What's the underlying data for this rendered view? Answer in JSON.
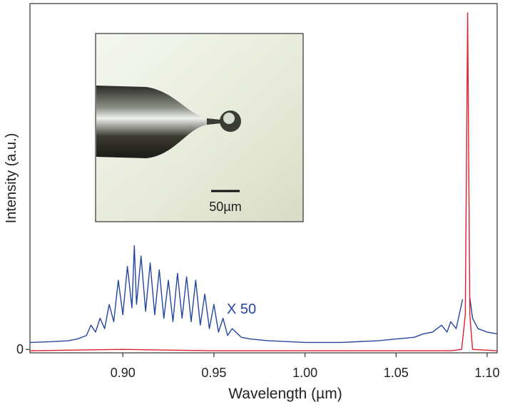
{
  "chart_data": {
    "type": "line",
    "x_label": "Wavelength (µm)",
    "y_label": "Intensity (a.u.)",
    "annotation": "X 50",
    "inset_scale_label": "50µm",
    "xlim": [
      0.849,
      1.1055
    ],
    "ylim": [
      -0.01,
      1
    ],
    "xticks": [
      {
        "value": 0.9,
        "label": "0.90"
      },
      {
        "value": 0.95,
        "label": "0.95"
      },
      {
        "value": 1.0,
        "label": "1.00"
      },
      {
        "value": 1.05,
        "label": "1.05"
      },
      {
        "value": 1.1,
        "label": "1.10"
      }
    ],
    "yticks": [
      0
    ],
    "series": [
      {
        "color": "#2546a0",
        "x": [
          0.849,
          0.86,
          0.87,
          0.875,
          0.88,
          0.8825,
          0.885,
          0.8875,
          0.89,
          0.8925,
          0.895,
          0.8975,
          0.9,
          0.9025,
          0.905,
          0.9063,
          0.9075,
          0.91,
          0.9125,
          0.915,
          0.9175,
          0.92,
          0.9225,
          0.925,
          0.9275,
          0.93,
          0.9325,
          0.935,
          0.9375,
          0.94,
          0.9425,
          0.945,
          0.9475,
          0.95,
          0.9525,
          0.955,
          0.9575,
          0.96,
          0.965,
          0.97,
          0.98,
          1.0,
          1.02,
          1.04,
          1.05,
          1.06,
          1.065,
          1.07,
          1.075,
          1.078,
          1.08,
          1.083,
          1.0855,
          1.0865,
          1.088,
          1.0905,
          1.092,
          1.095,
          1.1,
          1.1055
        ],
        "values": [
          0.02,
          0.022,
          0.025,
          0.03,
          0.04,
          0.07,
          0.05,
          0.09,
          0.06,
          0.13,
          0.08,
          0.2,
          0.1,
          0.24,
          0.12,
          0.3,
          0.13,
          0.27,
          0.11,
          0.25,
          0.1,
          0.23,
          0.09,
          0.2,
          0.08,
          0.22,
          0.09,
          0.21,
          0.08,
          0.2,
          0.07,
          0.16,
          0.06,
          0.13,
          0.05,
          0.09,
          0.04,
          0.06,
          0.035,
          0.03,
          0.025,
          0.02,
          0.02,
          0.025,
          0.03,
          0.035,
          0.045,
          0.05,
          0.07,
          0.05,
          0.08,
          0.06,
          0.12,
          0.145,
          null,
          0.15,
          0.09,
          0.06,
          0.05,
          0.045
        ]
      },
      {
        "color": "#e0202a",
        "x": [
          0.849,
          0.9,
          0.95,
          1.08,
          1.086,
          1.088,
          1.0893,
          1.0905,
          1.092,
          1.1055
        ],
        "values": [
          -0.004,
          0.0,
          -0.004,
          -0.004,
          0.0,
          0.1,
          0.973,
          0.1,
          0.0,
          -0.004
        ]
      }
    ]
  }
}
